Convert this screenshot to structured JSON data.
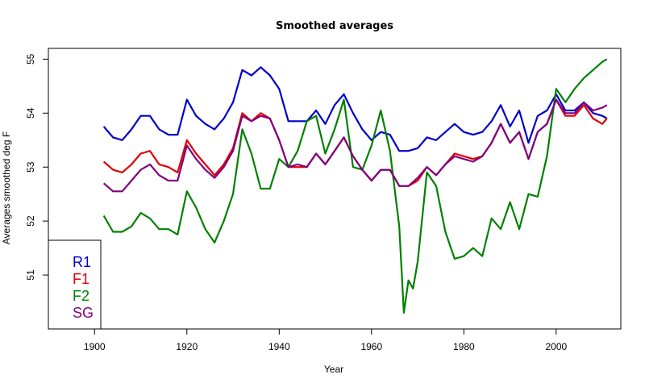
{
  "chart_data": {
    "type": "line",
    "title": "Smoothed averages",
    "xlabel": "Year",
    "ylabel": "Averages smoothed deg F",
    "xlim": [
      1890,
      2014
    ],
    "ylim": [
      50.0,
      55.2
    ],
    "x_ticks": [
      1900,
      1920,
      1940,
      1960,
      1980,
      2000
    ],
    "y_ticks": [
      51,
      52,
      53,
      54,
      55
    ],
    "legend": {
      "placement": "bottom-left",
      "entries": [
        "R1",
        "F1",
        "F2",
        "SG"
      ]
    },
    "grid": false,
    "series": [
      {
        "name": "R1",
        "color": "#0000cc",
        "points": [
          [
            1902,
            53.75
          ],
          [
            1904,
            53.55
          ],
          [
            1906,
            53.5
          ],
          [
            1908,
            53.7
          ],
          [
            1910,
            53.95
          ],
          [
            1912,
            53.95
          ],
          [
            1914,
            53.7
          ],
          [
            1916,
            53.6
          ],
          [
            1918,
            53.6
          ],
          [
            1920,
            54.25
          ],
          [
            1922,
            53.95
          ],
          [
            1924,
            53.8
          ],
          [
            1926,
            53.7
          ],
          [
            1928,
            53.9
          ],
          [
            1930,
            54.2
          ],
          [
            1932,
            54.8
          ],
          [
            1934,
            54.7
          ],
          [
            1936,
            54.85
          ],
          [
            1938,
            54.7
          ],
          [
            1940,
            54.45
          ],
          [
            1942,
            53.85
          ],
          [
            1944,
            53.85
          ],
          [
            1946,
            53.85
          ],
          [
            1948,
            54.05
          ],
          [
            1950,
            53.8
          ],
          [
            1952,
            54.15
          ],
          [
            1954,
            54.35
          ],
          [
            1956,
            54.0
          ],
          [
            1958,
            53.7
          ],
          [
            1960,
            53.5
          ],
          [
            1962,
            53.65
          ],
          [
            1964,
            53.6
          ],
          [
            1966,
            53.3
          ],
          [
            1968,
            53.3
          ],
          [
            1970,
            53.35
          ],
          [
            1972,
            53.55
          ],
          [
            1974,
            53.5
          ],
          [
            1976,
            53.65
          ],
          [
            1978,
            53.8
          ],
          [
            1980,
            53.65
          ],
          [
            1982,
            53.6
          ],
          [
            1984,
            53.65
          ],
          [
            1986,
            53.85
          ],
          [
            1988,
            54.15
          ],
          [
            1990,
            53.75
          ],
          [
            1992,
            54.05
          ],
          [
            1994,
            53.45
          ],
          [
            1996,
            53.95
          ],
          [
            1998,
            54.05
          ],
          [
            2000,
            54.35
          ],
          [
            2002,
            54.05
          ],
          [
            2004,
            54.05
          ],
          [
            2006,
            54.2
          ],
          [
            2008,
            54.0
          ],
          [
            2010,
            53.95
          ],
          [
            2011,
            53.9
          ]
        ]
      },
      {
        "name": "F1",
        "color": "#e00000",
        "points": [
          [
            1902,
            53.1
          ],
          [
            1904,
            52.95
          ],
          [
            1906,
            52.9
          ],
          [
            1908,
            53.05
          ],
          [
            1910,
            53.25
          ],
          [
            1912,
            53.3
          ],
          [
            1914,
            53.05
          ],
          [
            1916,
            53.0
          ],
          [
            1918,
            52.9
          ],
          [
            1920,
            53.5
          ],
          [
            1922,
            53.25
          ],
          [
            1924,
            53.05
          ],
          [
            1926,
            52.85
          ],
          [
            1928,
            53.05
          ],
          [
            1930,
            53.35
          ],
          [
            1932,
            54.0
          ],
          [
            1934,
            53.85
          ],
          [
            1936,
            54.0
          ],
          [
            1938,
            53.9
          ],
          [
            1940,
            53.5
          ],
          [
            1942,
            53.0
          ],
          [
            1944,
            53.0
          ],
          [
            1946,
            53.0
          ],
          [
            1948,
            53.25
          ],
          [
            1950,
            53.05
          ],
          [
            1952,
            53.3
          ],
          [
            1954,
            53.55
          ],
          [
            1956,
            53.2
          ],
          [
            1958,
            52.95
          ],
          [
            1960,
            52.75
          ],
          [
            1962,
            52.95
          ],
          [
            1964,
            52.95
          ],
          [
            1966,
            52.65
          ],
          [
            1968,
            52.65
          ],
          [
            1970,
            52.75
          ],
          [
            1972,
            53.0
          ],
          [
            1974,
            52.85
          ],
          [
            1976,
            53.05
          ],
          [
            1978,
            53.25
          ],
          [
            1980,
            53.2
          ],
          [
            1982,
            53.15
          ],
          [
            1984,
            53.2
          ],
          [
            1986,
            53.45
          ],
          [
            1988,
            53.8
          ],
          [
            1990,
            53.45
          ],
          [
            1992,
            53.65
          ],
          [
            1994,
            53.15
          ],
          [
            1996,
            53.65
          ],
          [
            1998,
            53.8
          ],
          [
            2000,
            54.25
          ],
          [
            2002,
            53.95
          ],
          [
            2004,
            53.95
          ],
          [
            2006,
            54.15
          ],
          [
            2008,
            53.9
          ],
          [
            2010,
            53.8
          ],
          [
            2011,
            53.9
          ]
        ]
      },
      {
        "name": "F2",
        "color": "#008000",
        "points": [
          [
            1902,
            52.1
          ],
          [
            1904,
            51.8
          ],
          [
            1906,
            51.8
          ],
          [
            1908,
            51.9
          ],
          [
            1910,
            52.15
          ],
          [
            1912,
            52.05
          ],
          [
            1914,
            51.85
          ],
          [
            1916,
            51.85
          ],
          [
            1918,
            51.75
          ],
          [
            1920,
            52.55
          ],
          [
            1922,
            52.25
          ],
          [
            1924,
            51.85
          ],
          [
            1926,
            51.6
          ],
          [
            1928,
            52.0
          ],
          [
            1930,
            52.5
          ],
          [
            1932,
            53.7
          ],
          [
            1934,
            53.25
          ],
          [
            1936,
            52.6
          ],
          [
            1938,
            52.6
          ],
          [
            1940,
            53.15
          ],
          [
            1942,
            53.0
          ],
          [
            1944,
            53.3
          ],
          [
            1946,
            53.85
          ],
          [
            1948,
            53.95
          ],
          [
            1950,
            53.25
          ],
          [
            1952,
            53.7
          ],
          [
            1954,
            54.25
          ],
          [
            1956,
            53.0
          ],
          [
            1958,
            52.95
          ],
          [
            1960,
            53.4
          ],
          [
            1962,
            54.05
          ],
          [
            1964,
            53.3
          ],
          [
            1966,
            51.9
          ],
          [
            1967,
            50.3
          ],
          [
            1968,
            50.9
          ],
          [
            1969,
            50.75
          ],
          [
            1970,
            51.25
          ],
          [
            1972,
            52.9
          ],
          [
            1974,
            52.65
          ],
          [
            1976,
            51.8
          ],
          [
            1978,
            51.3
          ],
          [
            1980,
            51.35
          ],
          [
            1982,
            51.5
          ],
          [
            1984,
            51.35
          ],
          [
            1986,
            52.05
          ],
          [
            1988,
            51.85
          ],
          [
            1990,
            52.35
          ],
          [
            1992,
            51.85
          ],
          [
            1994,
            52.5
          ],
          [
            1996,
            52.45
          ],
          [
            1998,
            53.2
          ],
          [
            2000,
            54.45
          ],
          [
            2002,
            54.2
          ],
          [
            2004,
            54.45
          ],
          [
            2006,
            54.65
          ],
          [
            2008,
            54.8
          ],
          [
            2010,
            54.95
          ],
          [
            2011,
            55.0
          ]
        ]
      },
      {
        "name": "SG",
        "color": "#800080",
        "points": [
          [
            1902,
            52.7
          ],
          [
            1904,
            52.55
          ],
          [
            1906,
            52.55
          ],
          [
            1908,
            52.75
          ],
          [
            1910,
            52.95
          ],
          [
            1912,
            53.05
          ],
          [
            1914,
            52.85
          ],
          [
            1916,
            52.75
          ],
          [
            1918,
            52.75
          ],
          [
            1920,
            53.4
          ],
          [
            1922,
            53.15
          ],
          [
            1924,
            52.95
          ],
          [
            1926,
            52.8
          ],
          [
            1928,
            53.0
          ],
          [
            1930,
            53.3
          ],
          [
            1932,
            53.95
          ],
          [
            1934,
            53.85
          ],
          [
            1936,
            53.95
          ],
          [
            1938,
            53.9
          ],
          [
            1940,
            53.5
          ],
          [
            1942,
            53.0
          ],
          [
            1944,
            53.05
          ],
          [
            1946,
            53.0
          ],
          [
            1948,
            53.25
          ],
          [
            1950,
            53.05
          ],
          [
            1952,
            53.3
          ],
          [
            1954,
            53.55
          ],
          [
            1956,
            53.2
          ],
          [
            1958,
            52.95
          ],
          [
            1960,
            52.75
          ],
          [
            1962,
            52.95
          ],
          [
            1964,
            52.95
          ],
          [
            1966,
            52.65
          ],
          [
            1968,
            52.65
          ],
          [
            1970,
            52.8
          ],
          [
            1972,
            53.0
          ],
          [
            1974,
            52.85
          ],
          [
            1976,
            53.05
          ],
          [
            1978,
            53.2
          ],
          [
            1980,
            53.15
          ],
          [
            1982,
            53.1
          ],
          [
            1984,
            53.2
          ],
          [
            1986,
            53.45
          ],
          [
            1988,
            53.8
          ],
          [
            1990,
            53.45
          ],
          [
            1992,
            53.65
          ],
          [
            1994,
            53.15
          ],
          [
            1996,
            53.65
          ],
          [
            1998,
            53.8
          ],
          [
            2000,
            54.25
          ],
          [
            2002,
            54.0
          ],
          [
            2004,
            54.0
          ],
          [
            2006,
            54.2
          ],
          [
            2008,
            54.05
          ],
          [
            2010,
            54.1
          ],
          [
            2011,
            54.15
          ]
        ]
      }
    ]
  }
}
